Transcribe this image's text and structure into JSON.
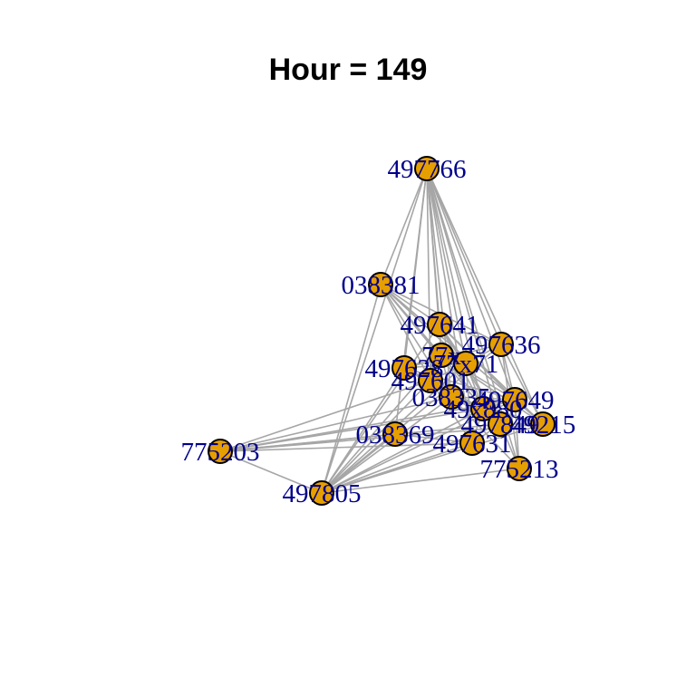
{
  "title": "Hour = 149",
  "colors": {
    "edge": "#a6a6a6",
    "node_fill": "#e69f00",
    "node_stroke": "#000000",
    "label": "#00008b"
  },
  "graph": {
    "nodes": [
      {
        "id": "497766"
      },
      {
        "id": "038381"
      },
      {
        "id": "497641"
      },
      {
        "id": "497636"
      },
      {
        "id": "77x"
      },
      {
        "id": "77x71"
      },
      {
        "id": "497628"
      },
      {
        "id": "497601"
      },
      {
        "id": "038335"
      },
      {
        "id": "497649"
      },
      {
        "id": "49x880"
      },
      {
        "id": "497849"
      },
      {
        "id": "49215"
      },
      {
        "id": "038369"
      },
      {
        "id": "497631"
      },
      {
        "id": "775213"
      },
      {
        "id": "775203"
      },
      {
        "id": "497805"
      }
    ],
    "edges": [
      [
        "497766",
        "038381"
      ],
      [
        "497766",
        "497641"
      ],
      [
        "497766",
        "497636"
      ],
      [
        "497766",
        "77x"
      ],
      [
        "497766",
        "77x71"
      ],
      [
        "497766",
        "497628"
      ],
      [
        "497766",
        "497601"
      ],
      [
        "497766",
        "038335"
      ],
      [
        "497766",
        "497649"
      ],
      [
        "497766",
        "49x880"
      ],
      [
        "497766",
        "497849"
      ],
      [
        "497766",
        "49215"
      ],
      [
        "497766",
        "038369"
      ],
      [
        "497766",
        "497631"
      ],
      [
        "497766",
        "775213"
      ],
      [
        "497766",
        "497805"
      ],
      [
        "038381",
        "497641"
      ],
      [
        "038381",
        "497636"
      ],
      [
        "038381",
        "77x"
      ],
      [
        "038381",
        "77x71"
      ],
      [
        "038381",
        "497601"
      ],
      [
        "038381",
        "038335"
      ],
      [
        "038381",
        "497649"
      ],
      [
        "038381",
        "49x880"
      ],
      [
        "038381",
        "497849"
      ],
      [
        "038381",
        "497805"
      ],
      [
        "497641",
        "497636"
      ],
      [
        "497641",
        "77x"
      ],
      [
        "497641",
        "77x71"
      ],
      [
        "497641",
        "497649"
      ],
      [
        "497641",
        "49x880"
      ],
      [
        "497641",
        "497849"
      ],
      [
        "497641",
        "49215"
      ],
      [
        "497641",
        "497805"
      ],
      [
        "497636",
        "77x71"
      ],
      [
        "497636",
        "497649"
      ],
      [
        "497636",
        "49215"
      ],
      [
        "497636",
        "775213"
      ],
      [
        "497636",
        "497628"
      ],
      [
        "497636",
        "497805"
      ],
      [
        "77x",
        "77x71"
      ],
      [
        "77x",
        "497628"
      ],
      [
        "77x",
        "497601"
      ],
      [
        "77x",
        "038335"
      ],
      [
        "77x",
        "497649"
      ],
      [
        "77x",
        "49215"
      ],
      [
        "77x",
        "497805"
      ],
      [
        "77x71",
        "497628"
      ],
      [
        "77x71",
        "497601"
      ],
      [
        "77x71",
        "49x880"
      ],
      [
        "77x71",
        "497849"
      ],
      [
        "77x71",
        "497631"
      ],
      [
        "77x71",
        "497805"
      ],
      [
        "497628",
        "497601"
      ],
      [
        "497628",
        "038335"
      ],
      [
        "497628",
        "497649"
      ],
      [
        "497628",
        "497849"
      ],
      [
        "497628",
        "497805"
      ],
      [
        "497601",
        "038335"
      ],
      [
        "497601",
        "49x880"
      ],
      [
        "497601",
        "497631"
      ],
      [
        "497601",
        "497805"
      ],
      [
        "497601",
        "775203"
      ],
      [
        "038335",
        "497649"
      ],
      [
        "038335",
        "49x880"
      ],
      [
        "038335",
        "497849"
      ],
      [
        "038335",
        "49215"
      ],
      [
        "038335",
        "775213"
      ],
      [
        "038335",
        "497805"
      ],
      [
        "038335",
        "775203"
      ],
      [
        "497649",
        "49x880"
      ],
      [
        "497649",
        "497849"
      ],
      [
        "497649",
        "49215"
      ],
      [
        "497649",
        "775213"
      ],
      [
        "497649",
        "497805"
      ],
      [
        "497649",
        "775203"
      ],
      [
        "49x880",
        "497849"
      ],
      [
        "49x880",
        "49215"
      ],
      [
        "49x880",
        "497631"
      ],
      [
        "49x880",
        "497805"
      ],
      [
        "49x880",
        "775203"
      ],
      [
        "497849",
        "49215"
      ],
      [
        "497849",
        "497631"
      ],
      [
        "497849",
        "775213"
      ],
      [
        "497849",
        "497805"
      ],
      [
        "497849",
        "775203"
      ],
      [
        "49215",
        "497805"
      ],
      [
        "49215",
        "775203"
      ],
      [
        "038369",
        "497631"
      ],
      [
        "038369",
        "497805"
      ],
      [
        "038369",
        "775203"
      ],
      [
        "497631",
        "497805"
      ],
      [
        "497631",
        "775203"
      ],
      [
        "775213",
        "497805"
      ],
      [
        "775203",
        "497805"
      ]
    ]
  }
}
